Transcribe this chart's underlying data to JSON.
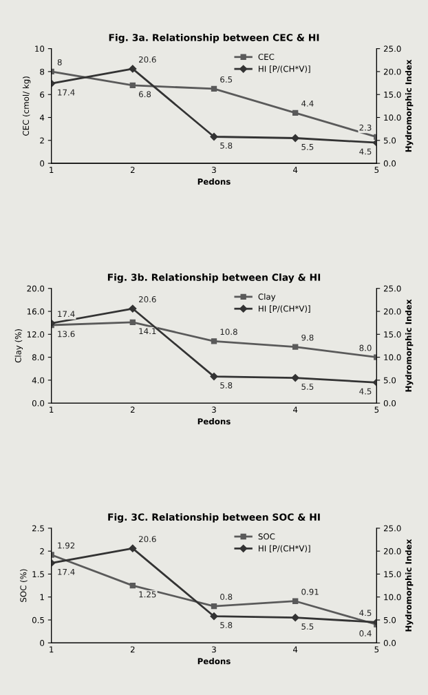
{
  "chart_data": [
    {
      "type": "line",
      "title": "Fig. 3a. Relationship between CEC & HI",
      "xlabel": "Pedons",
      "ylabel": "CEC (cmol/ kg)",
      "y2label": "Hydromorphic Index",
      "categories": [
        "1",
        "2",
        "3",
        "4",
        "5"
      ],
      "series": [
        {
          "name": "CEC",
          "color": "#5a5a5a",
          "marker": "square",
          "values": [
            8,
            6.8,
            6.5,
            4.4,
            2.3
          ],
          "value_labels": [
            "8",
            "6.8",
            "6.5",
            "4.4",
            "2.3"
          ]
        },
        {
          "name": "HI [P/(CH*V)]",
          "color": "#333333",
          "marker": "diamond",
          "axis": "y2",
          "values": [
            17.4,
            20.6,
            5.8,
            5.5,
            4.5
          ],
          "value_labels": [
            "17.4",
            "20.6",
            "5.8",
            "5.5",
            "4.5"
          ]
        }
      ],
      "ylim": [
        0,
        10
      ],
      "yticks": [
        0,
        2,
        4,
        6,
        8,
        10
      ],
      "y2lim": [
        0,
        25
      ],
      "y2ticks": [
        {
          "value": 0,
          "label": "0.0"
        },
        {
          "value": 5,
          "label": "5.0"
        },
        {
          "value": 10,
          "label": "10.0"
        },
        {
          "value": 15,
          "label": "15.0"
        },
        {
          "value": 20,
          "label": "20.0"
        },
        {
          "value": 25,
          "label": "25.0"
        }
      ],
      "legend": "top right",
      "grid": false
    },
    {
      "type": "line",
      "title": "Fig. 3b. Relationship between Clay & HI",
      "xlabel": "Pedons",
      "ylabel": "Clay (%)",
      "y2label": "Hydromorphic Index",
      "categories": [
        "1",
        "2",
        "3",
        "4",
        "5"
      ],
      "series": [
        {
          "name": "Clay",
          "color": "#5a5a5a",
          "marker": "square",
          "values": [
            13.6,
            14.1,
            10.8,
            9.8,
            8.0
          ],
          "value_labels": [
            "13.6",
            "14.1",
            "10.8",
            "9.8",
            "8.0"
          ]
        },
        {
          "name": "HI [P/(CH*V)]",
          "color": "#333333",
          "marker": "diamond",
          "axis": "y2",
          "values": [
            17.4,
            20.6,
            5.8,
            5.5,
            4.5
          ],
          "value_labels": [
            "17.4",
            "20.6",
            "5.8",
            "5.5",
            "4.5"
          ]
        }
      ],
      "ylim": [
        0,
        20
      ],
      "yticks": [
        {
          "value": 0,
          "label": "0.0"
        },
        {
          "value": 4,
          "label": "4.0"
        },
        {
          "value": 8,
          "label": "8.0"
        },
        {
          "value": 12,
          "label": "12.0"
        },
        {
          "value": 16,
          "label": "16.0"
        },
        {
          "value": 20,
          "label": "20.0"
        }
      ],
      "y2lim": [
        0,
        25
      ],
      "y2ticks": [
        {
          "value": 0,
          "label": "0.0"
        },
        {
          "value": 5,
          "label": "5.0"
        },
        {
          "value": 10,
          "label": "10.0"
        },
        {
          "value": 15,
          "label": "15.0"
        },
        {
          "value": 20,
          "label": "20.0"
        },
        {
          "value": 25,
          "label": "25.0"
        }
      ],
      "legend": "top right",
      "grid": false
    },
    {
      "type": "line",
      "title": "Fig. 3C. Relationship between SOC & HI",
      "xlabel": "Pedons",
      "ylabel": "SOC (%)",
      "y2label": "Hydromorphic Index",
      "categories": [
        "1",
        "2",
        "3",
        "4",
        "5"
      ],
      "series": [
        {
          "name": "SOC",
          "color": "#5a5a5a",
          "marker": "square",
          "values": [
            1.92,
            1.25,
            0.8,
            0.91,
            0.4
          ],
          "value_labels": [
            "1.92",
            "1.25",
            "0.8",
            "0.91",
            "0.4"
          ]
        },
        {
          "name": "HI [P/(CH*V)]",
          "color": "#333333",
          "marker": "diamond",
          "axis": "y2",
          "values": [
            17.4,
            20.6,
            5.8,
            5.5,
            4.5
          ],
          "value_labels": [
            "17.4",
            "20.6",
            "5.8",
            "5.5",
            "4.5"
          ]
        }
      ],
      "ylim": [
        0,
        2.5
      ],
      "yticks": [
        0,
        0.5,
        1,
        1.5,
        2,
        2.5
      ],
      "y2lim": [
        0,
        25
      ],
      "y2ticks": [
        {
          "value": 0,
          "label": "0.0"
        },
        {
          "value": 5,
          "label": "5.0"
        },
        {
          "value": 10,
          "label": "10.0"
        },
        {
          "value": 15,
          "label": "15.0"
        },
        {
          "value": 20,
          "label": "20.0"
        },
        {
          "value": 25,
          "label": "25.0"
        }
      ],
      "legend": "top right",
      "grid": false
    }
  ]
}
